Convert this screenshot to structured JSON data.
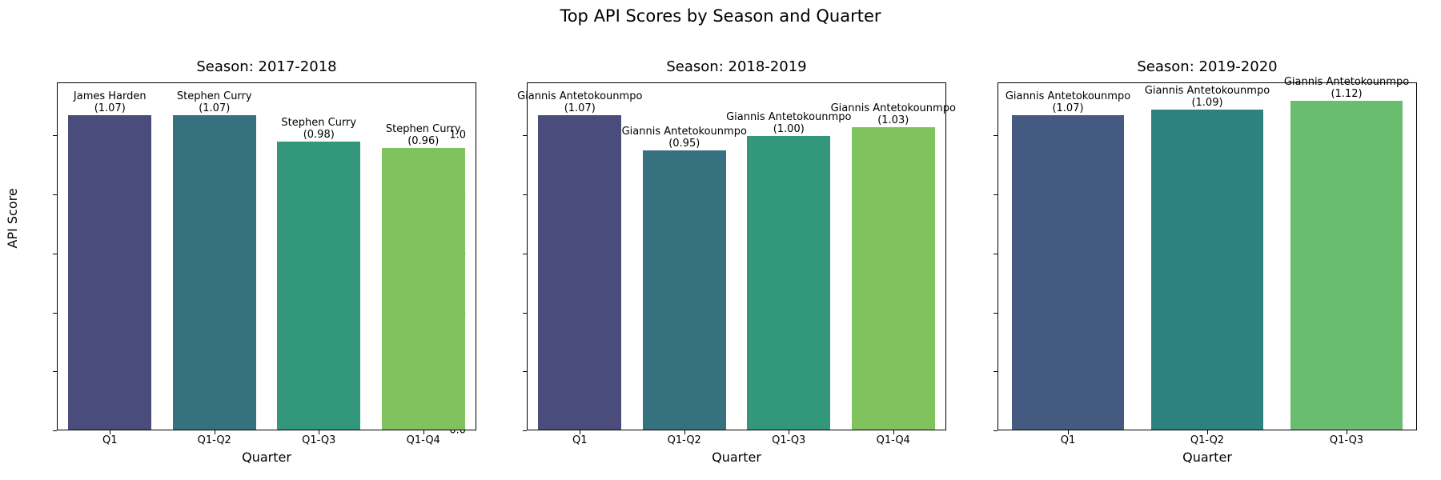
{
  "title": "Top API Scores by Season and Quarter",
  "ylabel": "API Score",
  "xlabel": "Quarter",
  "yticks": [
    "0.0",
    "0.2",
    "0.4",
    "0.6",
    "0.8",
    "1.0"
  ],
  "colors": {
    "season1": [
      "#4a4c7c",
      "#367180",
      "#32977b",
      "#7fc25e"
    ],
    "season2": [
      "#4a4c7c",
      "#367180",
      "#32977b",
      "#7fc25e"
    ],
    "season3": [
      "#455a81",
      "#2d8280",
      "#6abd6e"
    ]
  },
  "chart_data": [
    {
      "type": "bar",
      "title": "Season: 2017-2018",
      "xlabel": "Quarter",
      "ylabel": "API Score",
      "ylim": [
        0,
        1.18
      ],
      "categories": [
        "Q1",
        "Q1-Q2",
        "Q1-Q3",
        "Q1-Q4"
      ],
      "values": [
        1.07,
        1.07,
        0.98,
        0.96
      ],
      "annotations": [
        "James Harden",
        "Stephen Curry",
        "Stephen Curry",
        "Stephen Curry"
      ],
      "value_labels": [
        "(1.07)",
        "(1.07)",
        "(0.98)",
        "(0.96)"
      ]
    },
    {
      "type": "bar",
      "title": "Season: 2018-2019",
      "xlabel": "Quarter",
      "ylabel": "",
      "ylim": [
        0,
        1.18
      ],
      "categories": [
        "Q1",
        "Q1-Q2",
        "Q1-Q3",
        "Q1-Q4"
      ],
      "values": [
        1.07,
        0.95,
        1.0,
        1.03
      ],
      "annotations": [
        "Giannis Antetokounmpo",
        "Giannis Antetokounmpo",
        "Giannis Antetokounmpo",
        "Giannis Antetokounmpo"
      ],
      "value_labels": [
        "(1.07)",
        "(0.95)",
        "(1.00)",
        "(1.03)"
      ]
    },
    {
      "type": "bar",
      "title": "Season: 2019-2020",
      "xlabel": "Quarter",
      "ylabel": "",
      "ylim": [
        0,
        1.18
      ],
      "categories": [
        "Q1",
        "Q1-Q2",
        "Q1-Q3"
      ],
      "values": [
        1.07,
        1.09,
        1.12
      ],
      "annotations": [
        "Giannis Antetokounmpo",
        "Giannis Antetokounmpo",
        "Giannis Antetokounmpo"
      ],
      "value_labels": [
        "(1.07)",
        "(1.09)",
        "(1.12)"
      ]
    }
  ]
}
